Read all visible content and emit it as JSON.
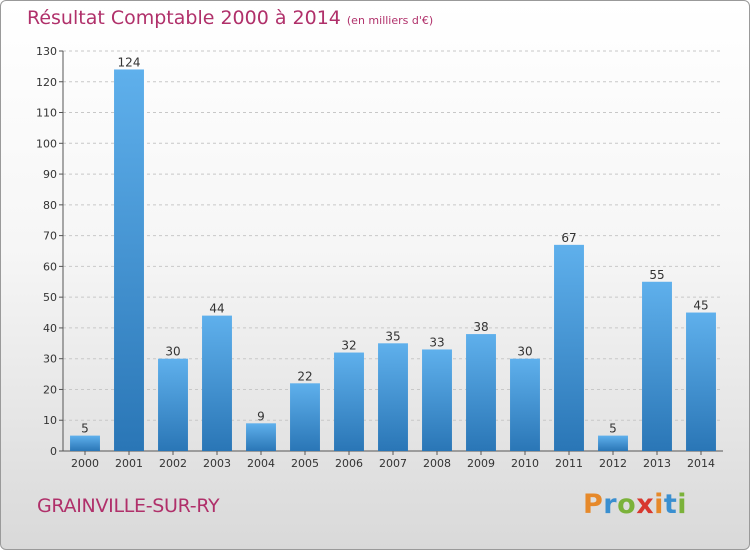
{
  "title": "Résultat Comptable 2000 à 2014",
  "unit": "(en milliers d'€)",
  "town": "GRAINVILLE-SUR-RY",
  "logo": {
    "letters": [
      "P",
      "r",
      "o",
      "x",
      "i",
      "t",
      "i"
    ],
    "colors": [
      "#e6892a",
      "#3a8fd0",
      "#7bb23a",
      "#d8382f",
      "#e6892a",
      "#3a8fd0",
      "#7bb23a"
    ]
  },
  "colors": {
    "bar_light": "#5fb0ec",
    "bar_dark": "#2a76b6",
    "title": "#b0306a"
  },
  "chart_data": {
    "type": "bar",
    "categories": [
      "2000",
      "2001",
      "2002",
      "2003",
      "2004",
      "2005",
      "2006",
      "2007",
      "2008",
      "2009",
      "2010",
      "2011",
      "2012",
      "2013",
      "2014"
    ],
    "values": [
      5,
      124,
      30,
      44,
      9,
      22,
      32,
      35,
      33,
      38,
      30,
      67,
      5,
      55,
      45
    ],
    "ylim": [
      0,
      130
    ],
    "yticks": [
      0,
      10,
      20,
      30,
      40,
      50,
      60,
      70,
      80,
      90,
      100,
      110,
      120,
      130
    ],
    "grid": true,
    "data_labels": true
  }
}
